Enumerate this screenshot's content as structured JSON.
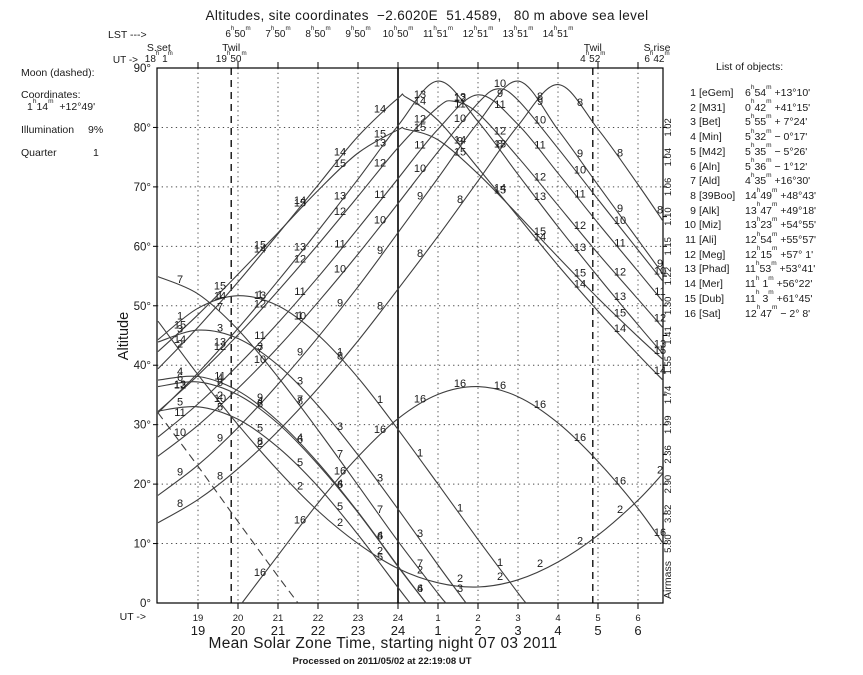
{
  "title": "Altitudes, site coordinates  −2.6020E  51.4589,   80 m above sea level",
  "footer": {
    "processed": "Processed on 2011/05/02 at 22:19:08 UT"
  },
  "moon_panel": {
    "title": "Moon (dashed):",
    "coords_label": "Coordinates:",
    "coords": "1h14m  +12°49'",
    "illum_label": "Illumination",
    "illum_value": "9%",
    "quarter_label": "Quarter",
    "quarter_value": "1"
  },
  "objects_panel": {
    "title": "List of objects:",
    "objects": [
      {
        "n": "1",
        "name": "[eGem]",
        "coords": "6h54m +13°10'"
      },
      {
        "n": "2",
        "name": "[M31]",
        "coords": "0h42m +41°15'"
      },
      {
        "n": "3",
        "name": "[Bet]",
        "coords": "5h55m + 7°24'"
      },
      {
        "n": "4",
        "name": "[Min]",
        "coords": "5h32m − 0°17'"
      },
      {
        "n": "5",
        "name": "[M42]",
        "coords": "5h35m − 5°26'"
      },
      {
        "n": "6",
        "name": "[Aln]",
        "coords": "5h36m − 1°12'"
      },
      {
        "n": "7",
        "name": "[Ald]",
        "coords": "4h35m +16°30'"
      },
      {
        "n": "8",
        "name": "[39Boo]",
        "coords": "14h49m +48°43'"
      },
      {
        "n": "9",
        "name": "[Alk]",
        "coords": "13h47m +49°18'"
      },
      {
        "n": "10",
        "name": "[Miz]",
        "coords": "13h23m +54°55'"
      },
      {
        "n": "11",
        "name": "[Ali]",
        "coords": "12h54m +55°57'"
      },
      {
        "n": "12",
        "name": "[Meg]",
        "coords": "12h15m +57° 1'"
      },
      {
        "n": "13",
        "name": "[Phad]",
        "coords": "11h53m +53°41'"
      },
      {
        "n": "14",
        "name": "[Mer]",
        "coords": "11h 1m +56°22'"
      },
      {
        "n": "15",
        "name": "[Dub]",
        "coords": "11h 3m +61°45'"
      },
      {
        "n": "16",
        "name": "[Sat]",
        "coords": "12h47m − 2° 8'"
      }
    ]
  },
  "chart_data": {
    "type": "line",
    "title": "Altitudes, site coordinates  −2.6020E  51.4589,   80 m above sea level",
    "xlabel": "Mean Solar Zone Time, starting night 07 03 2011",
    "ylabel": "Altitude",
    "y2label": "Airmass",
    "grid": true,
    "x_axis": {
      "prefix": "UT ->",
      "ticks": [
        19,
        20,
        21,
        22,
        23,
        24,
        25,
        26,
        27,
        28,
        29,
        30
      ],
      "labels": [
        "19",
        "20",
        "21",
        "22",
        "23",
        "24",
        "1",
        "2",
        "3",
        "4",
        "5",
        "6"
      ],
      "xlim": [
        17.97,
        30.63
      ]
    },
    "y_axis": {
      "ticks": [
        0,
        10,
        20,
        30,
        40,
        50,
        60,
        70,
        80,
        90
      ],
      "ylim": [
        0,
        90
      ]
    },
    "airmass_axis": {
      "altitudes": [
        80,
        75,
        70,
        65,
        60,
        55,
        50,
        45,
        40,
        35,
        30,
        25,
        20,
        15,
        10
      ],
      "values": [
        "1.02",
        "1.04",
        "1.06",
        "1.10",
        "1.15",
        "1.22",
        "1.30",
        "1.41",
        "1.55",
        "1.74",
        "1.99",
        "2.36",
        "2.90",
        "3.82",
        "5.80"
      ]
    },
    "lst_axis": {
      "prefix": "LST --->",
      "ticks": [
        20,
        21,
        22,
        23,
        24,
        25,
        26,
        27,
        28
      ],
      "labels": [
        "6h50m",
        "7h50m",
        "8h50m",
        "9h50m",
        "10h50m",
        "11h51m",
        "12h51m",
        "13h51m",
        "14h51m"
      ]
    },
    "events": {
      "sunset": {
        "label": "S.set",
        "time": "18h 1m",
        "ut": 18.02
      },
      "twilight_evening": {
        "label": "Twil",
        "time": "19h50m",
        "ut": 19.83
      },
      "twilight_morning": {
        "label": "Twil",
        "time": "4h52m",
        "ut": 28.87
      },
      "sunrise": {
        "label": "S.rise",
        "time": "6h42m",
        "ut": 30.7
      }
    },
    "vlines": {
      "solid_ut": [
        24
      ],
      "dashed_ut": [
        19.83,
        28.87
      ]
    },
    "colors": {
      "curve": "#3f3f3f",
      "grid": "#4a4a4a",
      "label": "#f212f2",
      "axis": "#000000"
    },
    "series": [
      {
        "n": "1",
        "name": "eGem",
        "points": [
          [
            18,
            44.3
          ],
          [
            19,
            49.6
          ],
          [
            20,
            51.7
          ],
          [
            21,
            50.0
          ],
          [
            22,
            45.1
          ],
          [
            23,
            37.9
          ],
          [
            24,
            29.2
          ],
          [
            25,
            20.0
          ],
          [
            26,
            10.7
          ],
          [
            27,
            1.7
          ],
          [
            27.2,
            0
          ]
        ]
      },
      {
        "n": "2",
        "name": "M31",
        "points": [
          [
            18,
            47.4
          ],
          [
            19,
            38.4
          ],
          [
            20,
            30.0
          ],
          [
            21,
            22.3
          ],
          [
            22,
            15.5
          ],
          [
            23,
            10.0
          ],
          [
            24,
            5.8
          ],
          [
            25,
            3.4
          ],
          [
            26,
            2.7
          ],
          [
            27,
            3.9
          ],
          [
            28,
            6.9
          ],
          [
            29,
            11.4
          ],
          [
            30,
            17.3
          ],
          [
            30.65,
            22.0
          ]
        ]
      },
      {
        "n": "3",
        "name": "Bet",
        "points": [
          [
            18,
            43.9
          ],
          [
            19,
            45.9
          ],
          [
            20,
            44.5
          ],
          [
            21,
            40.0
          ],
          [
            22,
            33.2
          ],
          [
            23,
            24.9
          ],
          [
            24,
            15.8
          ],
          [
            25,
            6.4
          ],
          [
            25.7,
            0
          ]
        ]
      },
      {
        "n": "4",
        "name": "Min",
        "points": [
          [
            18,
            37.5
          ],
          [
            19,
            38.1
          ],
          [
            20,
            35.7
          ],
          [
            21,
            30.6
          ],
          [
            22,
            23.6
          ],
          [
            23,
            15.3
          ],
          [
            24,
            6.2
          ],
          [
            24.7,
            0
          ]
        ]
      },
      {
        "n": "5",
        "name": "M42",
        "points": [
          [
            18,
            32.3
          ],
          [
            19,
            33.0
          ],
          [
            20,
            30.9
          ],
          [
            21,
            26.2
          ],
          [
            22,
            19.6
          ],
          [
            23,
            11.5
          ],
          [
            24,
            2.6
          ],
          [
            24.3,
            0
          ]
        ]
      },
      {
        "n": "6",
        "name": "Aln",
        "points": [
          [
            18,
            36.4
          ],
          [
            19,
            37.2
          ],
          [
            20,
            35.0
          ],
          [
            21,
            30.2
          ],
          [
            22,
            23.3
          ],
          [
            23,
            15.2
          ],
          [
            24,
            6.1
          ],
          [
            24.7,
            0
          ]
        ]
      },
      {
        "n": "7",
        "name": "Ald",
        "points": [
          [
            18,
            54.9
          ],
          [
            19,
            52.0
          ],
          [
            20,
            46.0
          ],
          [
            21,
            38.0
          ],
          [
            22,
            29.1
          ],
          [
            23,
            19.8
          ],
          [
            24,
            10.4
          ],
          [
            25,
            1.6
          ],
          [
            25.2,
            0
          ]
        ]
      },
      {
        "n": "8",
        "name": "39Boo",
        "points": [
          [
            18,
            13.5
          ],
          [
            19,
            17.4
          ],
          [
            20,
            22.6
          ],
          [
            21,
            28.9
          ],
          [
            22,
            36.1
          ],
          [
            23,
            44.1
          ],
          [
            24,
            52.8
          ],
          [
            25,
            61.7
          ],
          [
            26,
            71.0
          ],
          [
            27,
            80.3
          ],
          [
            28,
            87.2
          ],
          [
            29,
            79.7
          ],
          [
            30,
            70.4
          ],
          [
            30.65,
            64.0
          ]
        ]
      },
      {
        "n": "9",
        "name": "Alk",
        "points": [
          [
            18,
            18.1
          ],
          [
            19,
            23.2
          ],
          [
            20,
            29.5
          ],
          [
            21,
            36.8
          ],
          [
            22,
            44.7
          ],
          [
            23,
            53.2
          ],
          [
            24,
            62.3
          ],
          [
            25,
            71.5
          ],
          [
            26,
            80.8
          ],
          [
            27,
            87.8
          ],
          [
            28,
            79.6
          ],
          [
            29,
            70.3
          ],
          [
            30,
            61.1
          ],
          [
            30.65,
            55.1
          ]
        ]
      },
      {
        "n": "10",
        "name": "Miz",
        "points": [
          [
            18,
            24.7
          ],
          [
            19,
            29.9
          ],
          [
            20,
            36.1
          ],
          [
            21,
            43.0
          ],
          [
            22,
            50.6
          ],
          [
            23,
            58.7
          ],
          [
            24,
            67.2
          ],
          [
            25,
            75.9
          ],
          [
            26,
            84.1
          ],
          [
            26.5,
            86.5
          ],
          [
            27,
            84.6
          ],
          [
            28,
            76.5
          ],
          [
            29,
            67.9
          ],
          [
            30,
            59.4
          ],
          [
            30.65,
            53.9
          ]
        ]
      },
      {
        "n": "11",
        "name": "Ali",
        "points": [
          [
            18,
            27.9
          ],
          [
            19,
            33.5
          ],
          [
            20,
            40.0
          ],
          [
            21,
            47.1
          ],
          [
            22,
            54.8
          ],
          [
            23,
            63.0
          ],
          [
            24,
            71.4
          ],
          [
            25,
            79.7
          ],
          [
            26,
            85.5
          ],
          [
            27,
            80.5
          ],
          [
            28,
            72.3
          ],
          [
            29,
            63.9
          ],
          [
            30,
            55.8
          ],
          [
            30.65,
            50.5
          ]
        ]
      },
      {
        "n": "12",
        "name": "Meg",
        "points": [
          [
            18,
            32.2
          ],
          [
            19,
            38.3
          ],
          [
            20,
            45.1
          ],
          [
            21,
            52.5
          ],
          [
            22,
            60.3
          ],
          [
            23,
            68.4
          ],
          [
            24,
            76.6
          ],
          [
            25,
            83.4
          ],
          [
            25.4,
            84.4
          ],
          [
            26,
            82.4
          ],
          [
            27,
            75.0
          ],
          [
            28,
            66.9
          ],
          [
            29,
            58.8
          ],
          [
            30,
            51.1
          ],
          [
            30.65,
            46.1
          ]
        ]
      },
      {
        "n": "13",
        "name": "Phad",
        "points": [
          [
            18,
            32.0
          ],
          [
            19,
            38.7
          ],
          [
            20,
            46.2
          ],
          [
            21,
            54.2
          ],
          [
            22,
            62.6
          ],
          [
            23,
            71.3
          ],
          [
            24,
            80.3
          ],
          [
            25,
            87.8
          ],
          [
            26,
            81.0
          ],
          [
            27,
            72.1
          ],
          [
            28,
            63.3
          ],
          [
            29,
            54.9
          ],
          [
            30,
            46.8
          ],
          [
            30.65,
            41.7
          ]
        ]
      },
      {
        "n": "14",
        "name": "Mer",
        "points": [
          [
            18,
            39.4
          ],
          [
            19,
            46.4
          ],
          [
            20,
            54.0
          ],
          [
            21,
            62.1
          ],
          [
            22,
            70.3
          ],
          [
            23,
            78.5
          ],
          [
            24,
            84.9
          ],
          [
            24.2,
            85.1
          ],
          [
            25,
            81.2
          ],
          [
            26,
            73.2
          ],
          [
            27,
            65.0
          ],
          [
            28,
            56.8
          ],
          [
            29,
            49.1
          ],
          [
            30,
            41.8
          ],
          [
            30.65,
            37.3
          ]
        ]
      },
      {
        "n": "15",
        "name": "Dub",
        "points": [
          [
            18,
            42.3
          ],
          [
            19,
            48.5
          ],
          [
            20,
            55.3
          ],
          [
            21,
            62.3
          ],
          [
            22,
            69.4
          ],
          [
            23,
            75.7
          ],
          [
            24,
            79.6
          ],
          [
            24.2,
            79.7
          ],
          [
            25,
            77.9
          ],
          [
            26,
            72.2
          ],
          [
            27,
            65.3
          ],
          [
            28,
            58.2
          ],
          [
            29,
            51.3
          ],
          [
            30,
            44.8
          ],
          [
            30.65,
            40.8
          ]
        ]
      },
      {
        "n": "16",
        "name": "Sat",
        "points": [
          [
            20.1,
            0
          ],
          [
            21,
            8.0
          ],
          [
            22,
            16.8
          ],
          [
            23,
            24.6
          ],
          [
            24,
            31.0
          ],
          [
            25,
            35.1
          ],
          [
            26,
            36.4
          ],
          [
            27,
            34.7
          ],
          [
            28,
            30.3
          ],
          [
            29,
            23.8
          ],
          [
            30,
            15.9
          ],
          [
            30.65,
            9.8
          ]
        ]
      },
      {
        "n": "",
        "name": "Moon",
        "dashed": true,
        "points": [
          [
            18,
            32.0
          ],
          [
            19,
            23.0
          ],
          [
            20,
            13.7
          ],
          [
            21,
            4.5
          ],
          [
            21.5,
            0
          ]
        ]
      }
    ]
  }
}
